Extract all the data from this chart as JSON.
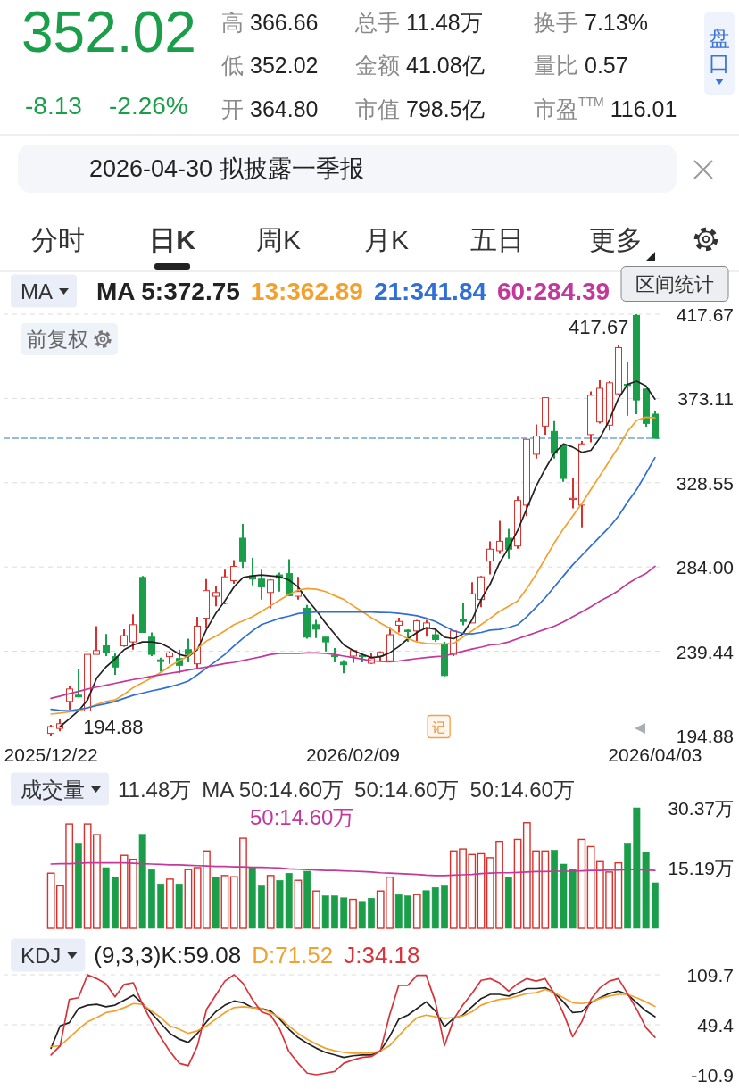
{
  "chart_data": [
    {
      "type": "other",
      "title": "352.02",
      "annotations": [
        "-8.13",
        "-2.26%",
        "高 366.66",
        "低 352.02",
        "开 364.80",
        "总手 11.48万",
        "金额 41.08亿",
        "市值 798.5亿",
        "换手 7.13%",
        "量比 0.57",
        "市盈$^{TTM}$ 116.01",
        "盘口",
        "2026-04-30 拟披露一季报",
        "分时",
        "日K",
        "周K",
        "月K",
        "五日",
        "更多"
      ]
    },
    {
      "type": "candlestick",
      "categories": [
        "2025/12/22",
        null,
        null,
        null,
        null,
        null,
        null,
        null,
        null,
        null,
        null,
        null,
        null,
        null,
        null,
        null,
        null,
        null,
        null,
        null,
        null,
        null,
        null,
        null,
        null,
        null,
        null,
        null,
        null,
        null,
        null,
        null,
        null,
        "2026/02/09",
        null,
        null,
        null,
        null,
        null,
        null,
        null,
        null,
        null,
        null,
        null,
        null,
        null,
        null,
        null,
        null,
        null,
        null,
        null,
        null,
        null,
        null,
        null,
        null,
        null,
        null,
        null,
        null,
        null,
        null,
        null,
        null,
        "2026/04/03"
      ],
      "ohlc": [
        [
          196.0,
          200.6,
          194.88,
          199.6
        ],
        [
          198.6,
          203.7,
          197.1,
          201.1
        ],
        [
          212.9,
          221.2,
          208.4,
          219.5
        ],
        [
          216.2,
          230.3,
          215.0,
          215.3
        ],
        [
          207.9,
          237.8,
          207.9,
          237.8
        ],
        [
          237.8,
          252.7,
          237.8,
          239.8
        ],
        [
          242.3,
          248.6,
          236.9,
          238.6
        ],
        [
          236.6,
          238.6,
          227.0,
          231.1
        ],
        [
          242.3,
          251.1,
          241.9,
          247.7
        ],
        [
          244.4,
          258.9,
          240.3,
          253.5
        ],
        [
          278.5,
          279.3,
          249.4,
          249.4
        ],
        [
          246.9,
          249.4,
          236.9,
          237.8
        ],
        [
          234.9,
          236.1,
          228.6,
          234.0
        ],
        [
          236.6,
          239.4,
          232.8,
          238.6
        ],
        [
          235.6,
          240.3,
          227.8,
          232.0
        ],
        [
          240.3,
          246.1,
          233.6,
          237.8
        ],
        [
          232.8,
          257.7,
          230.3,
          252.7
        ],
        [
          256.9,
          277.6,
          251.9,
          271.5
        ],
        [
          268.5,
          273.8,
          263.2,
          270.5
        ],
        [
          264.8,
          282.6,
          264.3,
          278.8
        ],
        [
          276.8,
          287.6,
          275.1,
          284.3
        ],
        [
          299.2,
          306.7,
          283.5,
          286.8
        ],
        [
          279.3,
          288.8,
          274.3,
          277.6
        ],
        [
          277.6,
          282.6,
          266.8,
          273.5
        ],
        [
          270.5,
          277.6,
          262.2,
          277.1
        ],
        [
          279.8,
          281.0,
          271.0,
          278.1
        ],
        [
          280.5,
          288.1,
          268.5,
          268.8
        ],
        [
          268.5,
          278.8,
          266.8,
          271.0
        ],
        [
          262.2,
          263.9,
          246.1,
          246.9
        ],
        [
          253.5,
          256.0,
          246.4,
          251.1
        ],
        [
          246.9,
          246.9,
          239.4,
          244.4
        ],
        [
          237.3,
          241.1,
          233.6,
          236.6
        ],
        [
          233.6,
          234.8,
          227.8,
          232.3
        ],
        [
          236.9,
          240.3,
          233.3,
          239.8
        ],
        [
          237.3,
          238.6,
          233.6,
          236.6
        ],
        [
          233.1,
          238.3,
          232.8,
          235.6
        ],
        [
          236.9,
          239.4,
          234.0,
          238.9
        ],
        [
          234.4,
          252.2,
          234.0,
          248.2
        ],
        [
          253.2,
          257.2,
          249.4,
          255.2
        ],
        [
          250.6,
          251.1,
          244.4,
          249.9
        ],
        [
          250.2,
          256.0,
          244.9,
          255.5
        ],
        [
          251.6,
          256.0,
          247.2,
          254.4
        ],
        [
          248.2,
          251.9,
          244.4,
          245.6
        ],
        [
          242.8,
          244.4,
          226.1,
          226.6
        ],
        [
          237.8,
          250.6,
          236.9,
          250.2
        ],
        [
          256.0,
          265.2,
          253.2,
          255.2
        ],
        [
          254.4,
          276.0,
          254.4,
          269.8
        ],
        [
          266.8,
          279.3,
          262.7,
          278.8
        ],
        [
          287.1,
          297.6,
          280.1,
          293.4
        ],
        [
          292.6,
          308.4,
          290.9,
          297.6
        ],
        [
          299.2,
          304.2,
          288.4,
          293.4
        ],
        [
          295.1,
          321.3,
          293.7,
          319.2
        ],
        [
          316.7,
          351.5,
          310.9,
          351.5
        ],
        [
          343.6,
          359.4,
          341.3,
          353.2
        ],
        [
          358.5,
          373.5,
          354.0,
          373.5
        ],
        [
          355.7,
          361.2,
          341.3,
          344.1
        ],
        [
          348.6,
          348.6,
          329.1,
          330.8
        ],
        [
          319.7,
          330.8,
          315.0,
          320.3
        ],
        [
          316.7,
          350.7,
          305.0,
          349.1
        ],
        [
          354.0,
          376.8,
          349.9,
          374.8
        ],
        [
          360.7,
          382.8,
          359.9,
          378.5
        ],
        [
          359.0,
          382.3,
          356.2,
          381.4
        ],
        [
          375.6,
          401.4,
          374.8,
          400.0
        ],
        [
          380.6,
          392.7,
          364.0,
          380.1
        ],
        [
          417.0,
          417.67,
          364.8,
          372.3
        ],
        [
          378.1,
          378.5,
          358.2,
          359.9
        ],
        [
          364.8,
          366.66,
          352.02,
          352.02
        ]
      ],
      "colors": [
        "#d9302c",
        "#d9302c",
        "#d9302c",
        "#1a9e4a",
        "#d9302c",
        "#d9302c",
        "#1a9e4a",
        "#1a9e4a",
        "#d9302c",
        "#d9302c",
        "#1a9e4a",
        "#1a9e4a",
        "#1a9e4a",
        "#d9302c",
        "#1a9e4a",
        "#1a9e4a",
        "#d9302c",
        "#d9302c",
        "#d9302c",
        "#d9302c",
        "#d9302c",
        "#1a9e4a",
        "#1a9e4a",
        "#1a9e4a",
        "#d9302c",
        "#1a9e4a",
        "#1a9e4a",
        "#d9302c",
        "#1a9e4a",
        "#1a9e4a",
        "#1a9e4a",
        "#1a9e4a",
        "#1a9e4a",
        "#d9302c",
        "#1a9e4a",
        "#d9302c",
        "#d9302c",
        "#d9302c",
        "#d9302c",
        "#1a9e4a",
        "#d9302c",
        "#d9302c",
        "#1a9e4a",
        "#1a9e4a",
        "#d9302c",
        "#1a9e4a",
        "#d9302c",
        "#d9302c",
        "#d9302c",
        "#d9302c",
        "#1a9e4a",
        "#d9302c",
        "#d9302c",
        "#d9302c",
        "#d9302c",
        "#1a9e4a",
        "#1a9e4a",
        "#d9302c",
        "#d9302c",
        "#d9302c",
        "#d9302c",
        "#d9302c",
        "#d9302c",
        "#1a9e4a",
        "#1a9e4a",
        "#1a9e4a",
        "#1a9e4a"
      ],
      "series": [
        {
          "type": "line",
          "name": "MA 5:372.75",
          "color": "#222222",
          "values": [
            null,
            199.6,
            203.7,
            207.9,
            213.7,
            225.3,
            231.1,
            235.3,
            240.3,
            242.8,
            244.4,
            244.4,
            243.6,
            241.1,
            237.8,
            236.6,
            240.3,
            251.1,
            259.4,
            266.0,
            273.5,
            278.5,
            279.3,
            279.8,
            279.3,
            278.8,
            277.1,
            273.5,
            266.8,
            261.0,
            254.4,
            248.6,
            242.8,
            240.0,
            237.8,
            236.1,
            236.6,
            238.6,
            241.9,
            246.1,
            249.4,
            251.9,
            251.1,
            246.9,
            246.1,
            248.6,
            256.0,
            266.8,
            275.1,
            286.0,
            294.2,
            303.4,
            315.0,
            326.6,
            335.8,
            344.1,
            349.1,
            347.4,
            344.6,
            345.7,
            352.4,
            361.5,
            373.1,
            380.6,
            382.3,
            379.8,
            372.75
          ]
        },
        {
          "type": "line",
          "name": "13:362.89",
          "color": "#f2a12e",
          "values": [
            206.2,
            206.7,
            207.4,
            208.0,
            209.5,
            211.2,
            212.9,
            213.7,
            216.7,
            220.3,
            222.8,
            225.3,
            228.3,
            231.6,
            234.4,
            236.9,
            240.8,
            244.9,
            247.4,
            250.2,
            253.5,
            255.5,
            257.7,
            260.5,
            263.5,
            266.5,
            269.5,
            271.8,
            272.6,
            272.2,
            271.0,
            268.8,
            266.8,
            263.5,
            260.5,
            257.2,
            254.4,
            251.6,
            248.6,
            246.1,
            244.4,
            243.6,
            243.3,
            243.3,
            243.6,
            246.9,
            250.2,
            253.5,
            256.9,
            260.5,
            263.2,
            266.0,
            272.6,
            280.1,
            288.4,
            296.7,
            304.2,
            310.9,
            317.5,
            325.0,
            332.4,
            339.9,
            347.4,
            355.7,
            361.5,
            363.2,
            362.89
          ]
        },
        {
          "type": "line",
          "name": "21:341.84",
          "color": "#2f6fd6",
          "values": [
            208.7,
            208.2,
            207.9,
            208.7,
            209.5,
            210.7,
            211.7,
            212.9,
            214.5,
            216.2,
            217.3,
            218.5,
            219.5,
            220.7,
            222.0,
            223.7,
            227.0,
            230.6,
            234.1,
            237.8,
            242.3,
            246.4,
            250.2,
            253.5,
            255.2,
            256.9,
            258.0,
            259.4,
            259.9,
            260.2,
            260.2,
            260.2,
            260.2,
            260.2,
            260.2,
            260.2,
            260.0,
            259.9,
            259.5,
            258.9,
            258.2,
            256.9,
            255.2,
            252.7,
            250.2,
            248.9,
            248.6,
            249.4,
            250.6,
            251.0,
            252.0,
            253.5,
            257.7,
            262.7,
            267.7,
            273.5,
            279.3,
            285.1,
            290.1,
            295.1,
            300.1,
            305.0,
            310.9,
            318.3,
            325.0,
            333.3,
            341.84
          ]
        },
        {
          "type": "line",
          "name": "60:284.39",
          "color": "#c2389b",
          "values": [
            214.5,
            215.7,
            217.0,
            218.2,
            219.5,
            220.5,
            221.5,
            222.5,
            223.5,
            224.5,
            225.3,
            226.2,
            227.0,
            227.8,
            228.6,
            229.5,
            230.3,
            231.1,
            232.0,
            232.9,
            233.6,
            234.6,
            235.6,
            236.6,
            237.8,
            238.3,
            238.3,
            238.3,
            238.6,
            238.6,
            238.3,
            237.8,
            236.9,
            236.1,
            235.3,
            234.4,
            234.1,
            233.9,
            234.3,
            234.9,
            235.6,
            236.1,
            236.6,
            236.9,
            238.3,
            239.4,
            240.6,
            241.6,
            242.8,
            243.2,
            244.4,
            246.1,
            247.7,
            249.4,
            251.1,
            252.7,
            254.9,
            257.7,
            260.2,
            263.0,
            266.0,
            268.5,
            271.5,
            275.1,
            278.1,
            280.5,
            284.39
          ]
        }
      ],
      "ylim": [
        194.88,
        417.67
      ],
      "yticks": [
        194.88,
        239.44,
        {
          "value": 284,
          "label": "284.00"
        },
        328.55,
        373.11,
        417.67
      ],
      "grid": "y",
      "legend": "top",
      "ref_lines": [
        {
          "axis": "y",
          "value": 352.02,
          "color": "#6fa6d6",
          "line_style": "dashed"
        }
      ],
      "annotations": [
        "MA",
        "区间统计",
        "前复权",
        "417.67",
        "194.88",
        "记"
      ]
    },
    {
      "type": "bar",
      "categories": [
        null,
        null,
        null,
        null,
        null,
        null,
        null,
        null,
        null,
        null,
        null,
        null,
        null,
        null,
        null,
        null,
        null,
        null,
        null,
        null,
        null,
        null,
        null,
        null,
        null,
        null,
        null,
        null,
        null,
        null,
        null,
        null,
        null,
        null,
        null,
        null,
        null,
        null,
        null,
        null,
        null,
        null,
        null,
        null,
        null,
        null,
        null,
        null,
        null,
        null,
        null,
        null,
        null,
        null,
        null,
        null,
        null,
        null,
        null,
        null,
        null,
        null,
        null,
        null,
        null,
        null,
        null
      ],
      "series": [
        {
          "colors": [
            "#d9302c",
            "#d9302c",
            "#d9302c",
            "#1a9e4a",
            "#d9302c",
            "#d9302c",
            "#1a9e4a",
            "#1a9e4a",
            "#d9302c",
            "#d9302c",
            "#1a9e4a",
            "#1a9e4a",
            "#1a9e4a",
            "#d9302c",
            "#1a9e4a",
            "#d9302c",
            "#d9302c",
            "#d9302c",
            "#1a9e4a",
            "#d9302c",
            "#d9302c",
            "#d9302c",
            "#1a9e4a",
            "#1a9e4a",
            "#d9302c",
            "#1a9e4a",
            "#1a9e4a",
            "#d9302c",
            "#1a9e4a",
            "#d9302c",
            "#1a9e4a",
            "#1a9e4a",
            "#1a9e4a",
            "#d9302c",
            "#1a9e4a",
            "#1a9e4a",
            "#d9302c",
            "#d9302c",
            "#1a9e4a",
            "#1a9e4a",
            "#d9302c",
            "#1a9e4a",
            "#1a9e4a",
            "#1a9e4a",
            "#d9302c",
            "#d9302c",
            "#d9302c",
            "#d9302c",
            "#d9302c",
            "#d9302c",
            "#1a9e4a",
            "#d9302c",
            "#d9302c",
            "#d9302c",
            "#d9302c",
            "#1a9e4a",
            "#1a9e4a",
            "#1a9e4a",
            "#d9302c",
            "#d9302c",
            "#d9302c",
            "#d9302c",
            "#d9302c",
            "#1a9e4a",
            "#1a9e4a",
            "#1a9e4a",
            "#1a9e4a"
          ],
          "values": [
            13.9,
            10.7,
            26.3,
            21.5,
            26.3,
            23.6,
            15.3,
            13.0,
            18.4,
            17.4,
            23.7,
            14.8,
            11.2,
            12.4,
            11.2,
            14.8,
            15.3,
            19.5,
            13.0,
            13.3,
            13.0,
            22.7,
            15.4,
            10.7,
            13.3,
            12.1,
            13.9,
            12.1,
            14.4,
            9.4,
            8.2,
            8.2,
            7.7,
            7.3,
            6.8,
            7.6,
            9.4,
            12.9,
            8.5,
            8.2,
            8.5,
            9.5,
            10.3,
            10.7,
            19.5,
            20.0,
            18.6,
            18.8,
            17.8,
            21.9,
            13.0,
            22.4,
            26.6,
            19.5,
            19.5,
            19.7,
            16.2,
            14.9,
            22.4,
            20.6,
            16.8,
            14.2,
            16.5,
            21.5,
            30.37,
            19.2,
            11.48
          ]
        },
        {
          "type": "line",
          "name": "50:14.60万",
          "color": "#c2389b",
          "values": [
            16.2,
            16.3,
            16.3,
            16.4,
            16.5,
            16.5,
            16.5,
            16.5,
            16.5,
            16.4,
            16.3,
            16.2,
            16.1,
            16.0,
            16.0,
            15.9,
            15.8,
            15.7,
            15.6,
            15.6,
            15.5,
            15.5,
            15.4,
            15.4,
            15.3,
            15.2,
            15.0,
            14.9,
            14.8,
            14.7,
            14.6,
            14.6,
            14.5,
            14.4,
            14.3,
            14.2,
            14.0,
            13.9,
            13.8,
            13.7,
            13.6,
            13.4,
            13.3,
            13.3,
            13.4,
            13.5,
            13.6,
            13.8,
            13.9,
            14.0,
            14.0,
            14.1,
            14.2,
            14.3,
            14.3,
            14.4,
            14.4,
            14.4,
            14.5,
            14.6,
            14.6,
            14.7,
            14.7,
            14.8,
            14.8,
            14.7,
            14.6
          ]
        }
      ],
      "ylim": [
        0,
        30.37
      ],
      "yticks": [
        {
          "value": 15.19,
          "label": "15.19万"
        },
        {
          "value": 30.37,
          "label": "30.37万"
        }
      ],
      "tick_labels": "y",
      "legend": "top",
      "annotations": [
        "成交量",
        "11.48万",
        "MA 50:14.60万",
        "50:14.60万",
        "50:14.60万"
      ]
    },
    {
      "type": "line",
      "categories": [
        null,
        null,
        null,
        null,
        null,
        null,
        null,
        null,
        null,
        null,
        null,
        null,
        null,
        null,
        null,
        null,
        null,
        null,
        null,
        null,
        null,
        null,
        null,
        null,
        null,
        null,
        null,
        null,
        null,
        null,
        null,
        null,
        null,
        null,
        null,
        null,
        null,
        null,
        null,
        null,
        null,
        null,
        null,
        null,
        null,
        null,
        null,
        null,
        null,
        null,
        null,
        null,
        null,
        null,
        null,
        null,
        null,
        null,
        null,
        null,
        null,
        null,
        null,
        null,
        null,
        null,
        null
      ],
      "series": [
        {
          "name": "(9,3,3)K:59.08",
          "color": "#222222",
          "values": [
            21,
            48,
            52,
            69,
            73,
            74,
            71,
            73,
            79,
            85,
            75,
            63,
            51,
            39,
            32,
            28,
            39,
            53,
            65,
            73,
            78,
            76,
            70,
            69,
            66,
            56,
            44,
            34,
            27,
            21,
            16,
            13,
            10,
            12,
            13,
            13,
            18,
            35,
            56,
            61,
            69,
            77,
            66,
            47,
            57,
            61,
            71,
            81,
            86,
            86,
            84,
            88,
            93,
            93,
            94,
            88,
            77,
            64,
            65,
            76,
            82,
            87,
            90,
            86,
            76,
            66,
            59.08
          ]
        },
        {
          "name": "D:71.52",
          "color": "#f2a12e",
          "values": [
            23,
            24,
            34,
            44,
            53,
            58,
            64,
            66,
            70,
            75,
            74,
            66,
            58,
            48,
            44,
            39,
            42,
            48,
            56,
            64,
            70,
            71,
            70,
            69,
            64,
            58,
            48,
            39,
            32,
            26,
            21,
            18,
            16,
            15,
            15,
            15,
            18,
            24,
            36,
            48,
            58,
            61,
            59,
            57,
            58,
            60,
            65,
            73,
            77,
            80,
            81,
            84,
            87,
            88,
            92,
            88,
            82,
            76,
            75,
            77,
            81,
            84,
            86,
            86,
            82,
            77,
            71.52
          ]
        },
        {
          "name": "J:34.18",
          "color": "#d8333a",
          "values": [
            13,
            24,
            80,
            82,
            109.7,
            105,
            99,
            83,
            98,
            100,
            74,
            53,
            34,
            17,
            3,
            0,
            24,
            68,
            85,
            102,
            109.7,
            99,
            80,
            65,
            61,
            44,
            17,
            3,
            -9,
            -10.9,
            -9,
            -7,
            3,
            7,
            10,
            11,
            18,
            61,
            97,
            97,
            109,
            109,
            77,
            24,
            56,
            73,
            87,
            103,
            105,
            100,
            90,
            99,
            105,
            102,
            105,
            87,
            63,
            35,
            53,
            80,
            94,
            102,
            105,
            87,
            68,
            46,
            34.18
          ]
        }
      ],
      "ylim": [
        -10.9,
        109.7
      ],
      "yticks": [
        -10.9,
        49.4,
        109.7
      ],
      "grid": "y",
      "tick_labels": "y",
      "legend": "top",
      "annotations": [
        "KDJ"
      ]
    }
  ]
}
